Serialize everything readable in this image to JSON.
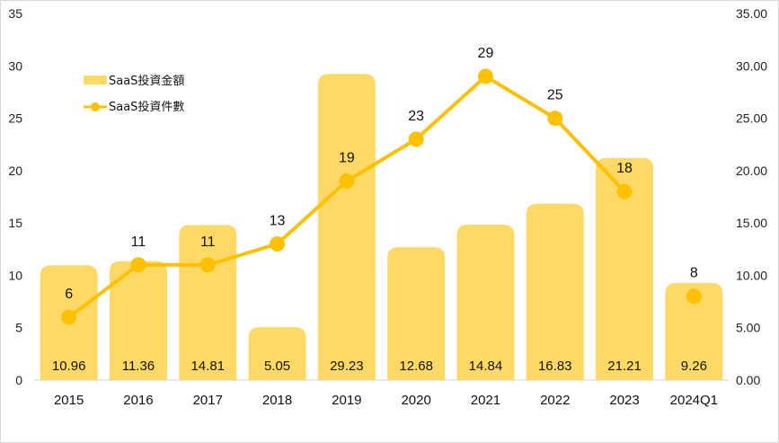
{
  "chart_data": {
    "type": "bar",
    "categories": [
      "2015",
      "2016",
      "2017",
      "2018",
      "2019",
      "2020",
      "2021",
      "2022",
      "2023",
      "2024Q1"
    ],
    "series": [
      {
        "name": "SaaS投資金額",
        "type": "bar",
        "axis": "right",
        "values": [
          10.96,
          11.36,
          14.81,
          5.05,
          29.23,
          12.68,
          14.84,
          16.83,
          21.21,
          9.26
        ],
        "value_labels": [
          "10.96",
          "11.36",
          "14.81",
          "5.05",
          "29.23",
          "12.68",
          "14.84",
          "16.83",
          "21.21",
          "9.26"
        ],
        "color": "#FFD966"
      },
      {
        "name": "SaaS投資件數",
        "type": "line",
        "axis": "left",
        "values": [
          6,
          11,
          11,
          13,
          19,
          23,
          29,
          25,
          18,
          8
        ],
        "value_labels": [
          "6",
          "11",
          "11",
          "13",
          "19",
          "23",
          "29",
          "25",
          "18",
          "8"
        ],
        "color": "#FFC000"
      }
    ],
    "line_connects_last_point": false,
    "left_axis": {
      "min": 0,
      "max": 35,
      "step": 5,
      "ticks": [
        "0",
        "5",
        "10",
        "15",
        "20",
        "25",
        "30",
        "35"
      ]
    },
    "right_axis": {
      "min": 0,
      "max": 35,
      "step": 5,
      "ticks": [
        "0.00",
        "5.00",
        "10.00",
        "15.00",
        "20.00",
        "25.00",
        "30.00",
        "35.00"
      ]
    },
    "grid": false,
    "legend_position": "top-left",
    "title": "",
    "xlabel": "",
    "ylabel": ""
  }
}
